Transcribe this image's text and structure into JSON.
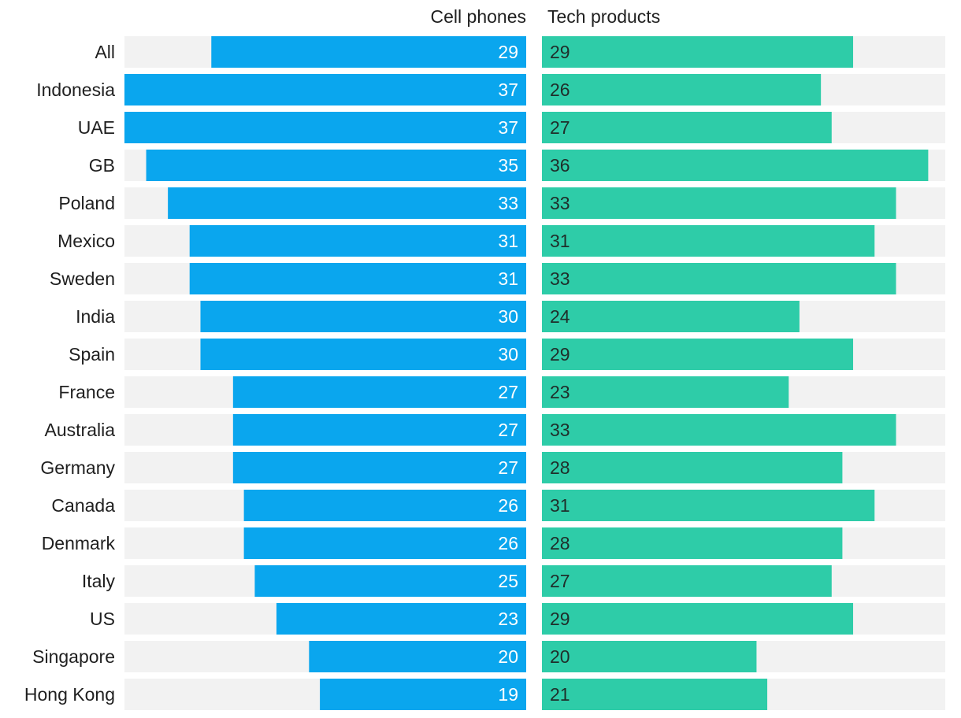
{
  "chart_data": {
    "type": "bar",
    "layout": "mirrored-horizontal",
    "categories": [
      "All",
      "Indonesia",
      "UAE",
      "GB",
      "Poland",
      "Mexico",
      "Sweden",
      "India",
      "Spain",
      "France",
      "Australia",
      "Germany",
      "Canada",
      "Denmark",
      "Italy",
      "US",
      "Singapore",
      "Hong Kong"
    ],
    "series": [
      {
        "name": "Cell phones",
        "values": [
          29,
          37,
          37,
          35,
          33,
          31,
          31,
          30,
          30,
          27,
          27,
          27,
          26,
          26,
          25,
          23,
          20,
          19
        ],
        "color": "#0aa6ee"
      },
      {
        "name": "Tech products",
        "values": [
          29,
          26,
          27,
          36,
          33,
          31,
          33,
          24,
          29,
          23,
          33,
          28,
          31,
          28,
          27,
          29,
          20,
          21
        ],
        "color": "#2ecca8"
      }
    ],
    "xlim": [
      0,
      37
    ],
    "track_color": "#f2f2f2"
  }
}
